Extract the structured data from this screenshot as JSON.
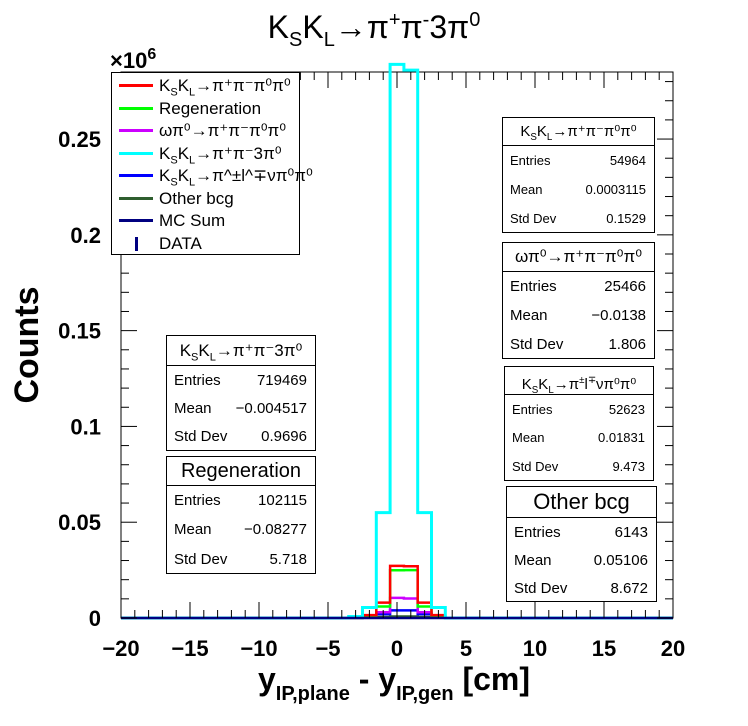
{
  "chart_data": {
    "type": "histogram",
    "title": "K_S K_L → π⁺π⁻3π⁰",
    "xlabel": "y_IP,plane - y_IP,gen [cm]",
    "ylabel": "Counts",
    "y_multiplier_label": "×10^6",
    "xlim": [
      -20,
      20
    ],
    "ylim": [
      0,
      0.285
    ],
    "x_ticks": [
      "−20",
      "−15",
      "−10",
      "−5",
      "0",
      "5",
      "10",
      "15",
      "20"
    ],
    "y_ticks": [
      "0",
      "0.05",
      "0.1",
      "0.15",
      "0.2",
      "0.25"
    ],
    "bin_edges": [
      -3.5,
      -2.5,
      -1.5,
      -0.5,
      0.5,
      1.5,
      2.5,
      3.5
    ],
    "series": [
      {
        "name": "KSKL→π+π-π0π0",
        "color": "#ff0000",
        "values": [
          0.0002,
          0.0015,
          0.008,
          0.0272,
          0.027,
          0.008,
          0.0015
        ]
      },
      {
        "name": "Regeneration",
        "color": "#00ff00",
        "values": [
          0.0001,
          0.0005,
          0.006,
          0.0249,
          0.025,
          0.006,
          0.0005
        ]
      },
      {
        "name": "ωπ0→π+π-π0π0",
        "color": "#cc00ff",
        "values": [
          0.0001,
          0.0008,
          0.003,
          0.0105,
          0.0102,
          0.003,
          0.0008
        ]
      },
      {
        "name": "KSKL→π+π-3π0",
        "color": "#00ffff",
        "values": [
          0.0008,
          0.0055,
          0.055,
          0.289,
          0.286,
          0.055,
          0.0055
        ]
      },
      {
        "name": "KSKL→π±l∓νπ0π0",
        "color": "#0000ff",
        "values": [
          0.0001,
          0.0005,
          0.002,
          0.004,
          0.004,
          0.002,
          0.0005
        ]
      },
      {
        "name": "Other bcg",
        "color": "#2e5e2e",
        "values": [
          0,
          0.0001,
          0.0005,
          0.0008,
          0.0008,
          0.0005,
          0.0001
        ]
      },
      {
        "name": "MC Sum",
        "color": "#000080",
        "values": [
          0,
          0,
          0,
          0,
          0,
          0,
          0
        ]
      },
      {
        "name": "DATA",
        "color": "#000080",
        "values": [
          0,
          0,
          0,
          0,
          0,
          0,
          0
        ]
      }
    ],
    "legend_position": "top-left"
  },
  "legend": {
    "items": [
      {
        "label_main": "K",
        "sub1": "S",
        "mid": "K",
        "sub2": "L",
        "rest": "→π⁺π⁻π⁰π⁰",
        "plain": "",
        "color": "#ff0000",
        "kind": "line"
      },
      {
        "plain": "Regeneration",
        "color": "#00ff00",
        "kind": "line"
      },
      {
        "plain": "ωπ⁰→π⁺π⁻π⁰π⁰",
        "color": "#cc00ff",
        "kind": "line"
      },
      {
        "label_main": "K",
        "sub1": "S",
        "mid": "K",
        "sub2": "L",
        "rest": "→π⁺π⁻3π⁰",
        "plain": "",
        "color": "#00ffff",
        "kind": "line"
      },
      {
        "label_main": "K",
        "sub1": "S",
        "mid": "K",
        "sub2": "L",
        "rest": "→π^±l^∓νπ⁰π⁰",
        "plain": "",
        "color": "#0000ff",
        "kind": "line"
      },
      {
        "plain": "Other bcg",
        "color": "#2e5e2e",
        "kind": "line"
      },
      {
        "plain": "MC Sum",
        "color": "#000080",
        "kind": "line"
      },
      {
        "plain": "DATA",
        "color": "#000080",
        "kind": "marker"
      }
    ]
  },
  "stats": [
    {
      "id": "ksklpipipi0pi0",
      "title": "K_SK_L→π⁺π⁻π⁰π⁰",
      "rows": [
        [
          "Entries",
          "54964"
        ],
        [
          "Mean",
          "0.0003115"
        ],
        [
          "Std Dev",
          "0.1529"
        ]
      ]
    },
    {
      "id": "omegapi0",
      "title": "ωπ⁰→π⁺π⁻π⁰π⁰",
      "rows": [
        [
          "Entries",
          "25466"
        ],
        [
          "Mean",
          "−0.0138"
        ],
        [
          "Std Dev",
          "1.806"
        ]
      ]
    },
    {
      "id": "ksklsemilep",
      "title": "K_SK_L→π^±l^∓νπ⁰π⁰",
      "rows": [
        [
          "Entries",
          "52623"
        ],
        [
          "Mean",
          "0.01831"
        ],
        [
          "Std Dev",
          "9.473"
        ]
      ]
    },
    {
      "id": "otherbcg",
      "title": "Other bcg",
      "rows": [
        [
          "Entries",
          "6143"
        ],
        [
          "Mean",
          "0.05106"
        ],
        [
          "Std Dev",
          "8.672"
        ]
      ]
    },
    {
      "id": "ksklpipi3pi0",
      "title": "K_SK_L→π⁺π⁻3π⁰",
      "rows": [
        [
          "Entries",
          "719469"
        ],
        [
          "Mean",
          "−0.004517"
        ],
        [
          "Std Dev",
          "0.9696"
        ]
      ]
    },
    {
      "id": "regeneration",
      "title": "Regeneration",
      "rows": [
        [
          "Entries",
          "102115"
        ],
        [
          "Mean",
          "−0.08277"
        ],
        [
          "Std Dev",
          "5.718"
        ]
      ]
    }
  ]
}
